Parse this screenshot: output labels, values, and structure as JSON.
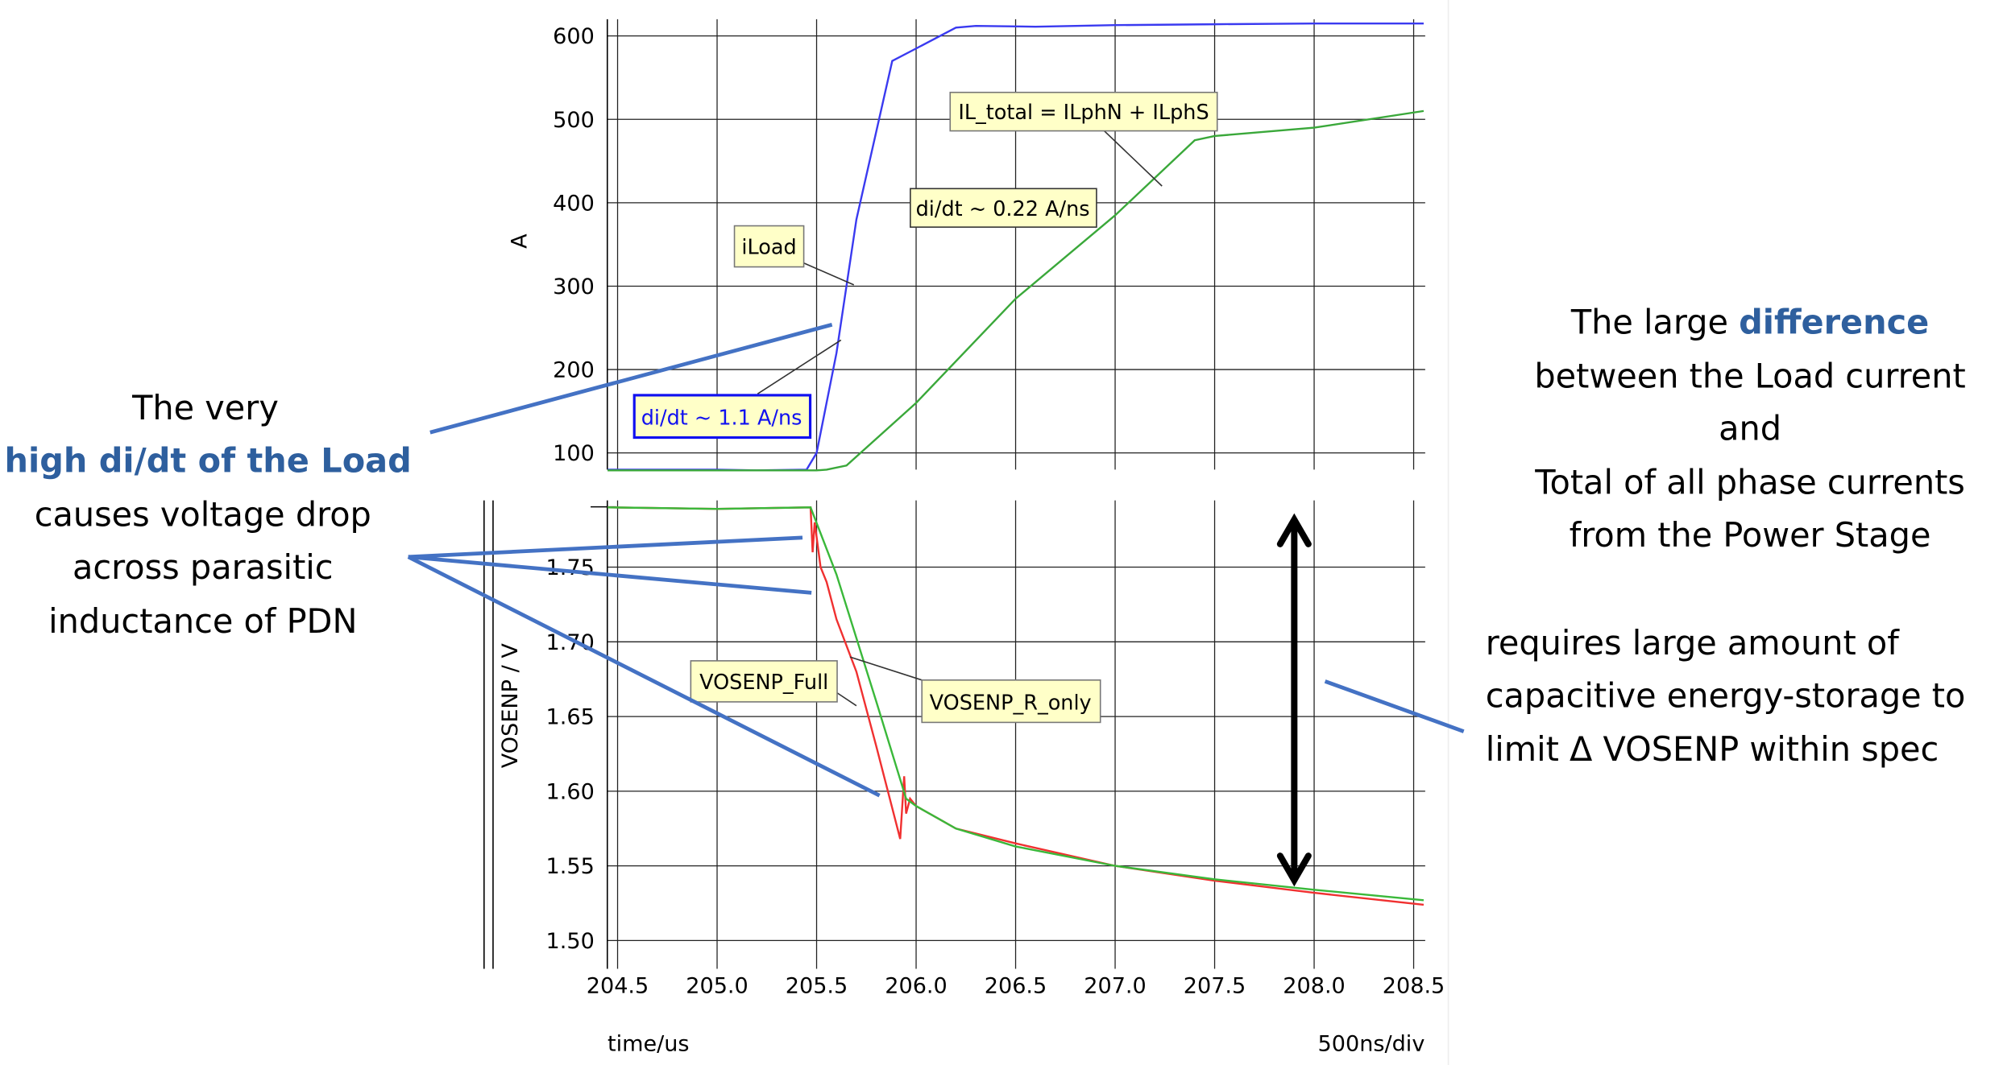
{
  "colors": {
    "iLoad": "#3a3af0",
    "IL_total": "#3aa83a",
    "VOSENP_Full": "#f03030",
    "VOSENP_R_only": "#3ab83a",
    "pointer": "#4472c4",
    "highlight": "#2e5f9e",
    "annotation_bg": "#ffffc8"
  },
  "chart_data": [
    {
      "type": "line",
      "ylabel": "A",
      "xlim": [
        204.45,
        208.55
      ],
      "ylim": [
        80,
        620
      ],
      "yticks": [
        "100",
        "200",
        "300",
        "400",
        "500",
        "600"
      ],
      "grid": true,
      "series": [
        {
          "name": "iLoad",
          "x": [
            204.45,
            205.0,
            205.2,
            205.45,
            205.5,
            205.6,
            205.7,
            205.88,
            206.0,
            206.2,
            206.3,
            206.6,
            207.0,
            207.5,
            208.0,
            208.55
          ],
          "y": [
            80,
            80,
            79,
            80,
            100,
            220,
            380,
            570,
            585,
            610,
            612,
            611,
            613,
            614,
            615,
            615
          ]
        },
        {
          "name": "IL_total",
          "x": [
            204.45,
            205.0,
            205.5,
            205.55,
            205.65,
            206.0,
            206.5,
            207.0,
            207.4,
            207.5,
            208.0,
            208.55
          ],
          "y": [
            79,
            79,
            79,
            80,
            85,
            160,
            285,
            385,
            475,
            480,
            490,
            510
          ]
        }
      ],
      "annotations": [
        "iLoad",
        "IL_total = ILphN + ILphS",
        "di/dt ~ 0.22 A/ns",
        "di/dt ~ 1.1 A/ns"
      ]
    },
    {
      "type": "line",
      "ylabel": "VOSENP / V",
      "xlabel": "time/us",
      "scale_label": "500ns/div",
      "xlim": [
        204.45,
        208.55
      ],
      "ylim": [
        1.48,
        1.795
      ],
      "xticks": [
        "204.5",
        "205.0",
        "205.5",
        "206.0",
        "206.5",
        "207.0",
        "207.5",
        "208.0",
        "208.5"
      ],
      "yticks": [
        "1.50",
        "1.55",
        "1.60",
        "1.65",
        "1.70",
        "1.75"
      ],
      "grid": true,
      "series": [
        {
          "name": "VOSENP_Full",
          "x": [
            204.45,
            205.0,
            205.47,
            205.48,
            205.49,
            205.52,
            205.55,
            205.6,
            205.7,
            205.8,
            205.92,
            205.94,
            205.95,
            205.97,
            206.0,
            206.2,
            206.5,
            207.0,
            207.5,
            208.0,
            208.55
          ],
          "y": [
            1.79,
            1.789,
            1.79,
            1.76,
            1.78,
            1.75,
            1.74,
            1.715,
            1.68,
            1.63,
            1.568,
            1.61,
            1.585,
            1.595,
            1.59,
            1.575,
            1.565,
            1.55,
            1.54,
            1.532,
            1.524
          ]
        },
        {
          "name": "VOSENP_R_only",
          "x": [
            204.45,
            205.0,
            205.47,
            205.6,
            205.8,
            205.95,
            206.0,
            206.2,
            206.5,
            207.0,
            207.5,
            208.0,
            208.55
          ],
          "y": [
            1.79,
            1.789,
            1.79,
            1.745,
            1.66,
            1.595,
            1.59,
            1.575,
            1.563,
            1.55,
            1.541,
            1.534,
            1.527
          ]
        }
      ],
      "annotations": [
        "VOSENP_Full",
        "VOSENP_R_only"
      ]
    }
  ],
  "left_text": {
    "line1": "The very",
    "line2": "high di/dt of the Load",
    "line3": "causes voltage drop",
    "line4": "across parasitic",
    "line5": "inductance of PDN"
  },
  "right_text": {
    "line1_a": "The large ",
    "line1_b": "difference",
    "line2": "between the Load current",
    "line3": "and",
    "line4": "Total of all phase currents",
    "line5": "from the Power Stage",
    "line6": "requires large amount of",
    "line7": "capacitive energy-storage to",
    "line8": "limit Δ VOSENP within spec"
  }
}
